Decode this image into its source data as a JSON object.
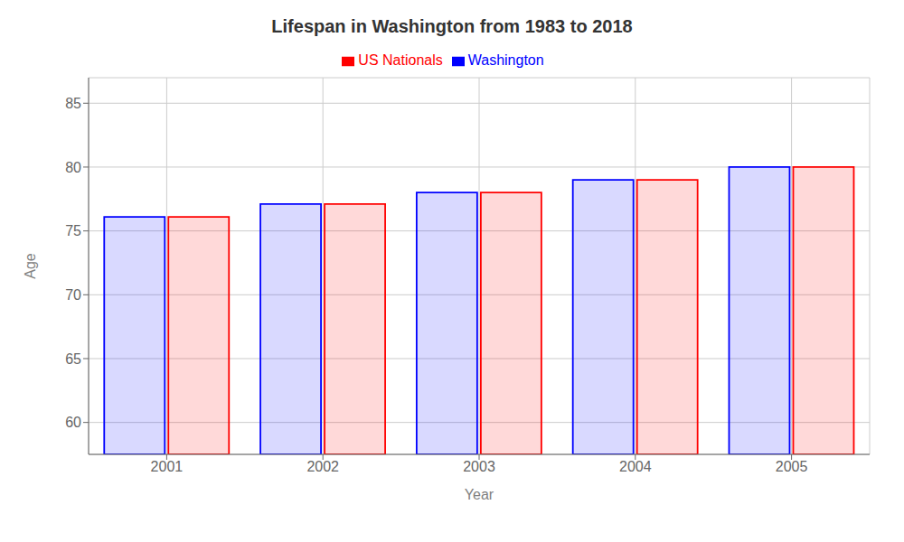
{
  "chart_data": {
    "type": "bar",
    "title": "Lifespan in Washington from 1983 to 2018",
    "x_label": "Year",
    "y_label": "Age",
    "categories": [
      "2001",
      "2002",
      "2003",
      "2004",
      "2005"
    ],
    "series": [
      {
        "name": "Washington",
        "color": "#0000ff",
        "values": [
          76.1,
          77.1,
          78.0,
          79.0,
          80.0
        ]
      },
      {
        "name": "US Nationals",
        "color": "#ff0000",
        "values": [
          76.1,
          77.1,
          78.0,
          79.0,
          80.0
        ]
      }
    ],
    "ylim": [
      57.5,
      87
    ],
    "yticks": [
      60,
      65,
      70,
      75,
      80,
      85
    ],
    "grid": true,
    "legend": "top"
  }
}
